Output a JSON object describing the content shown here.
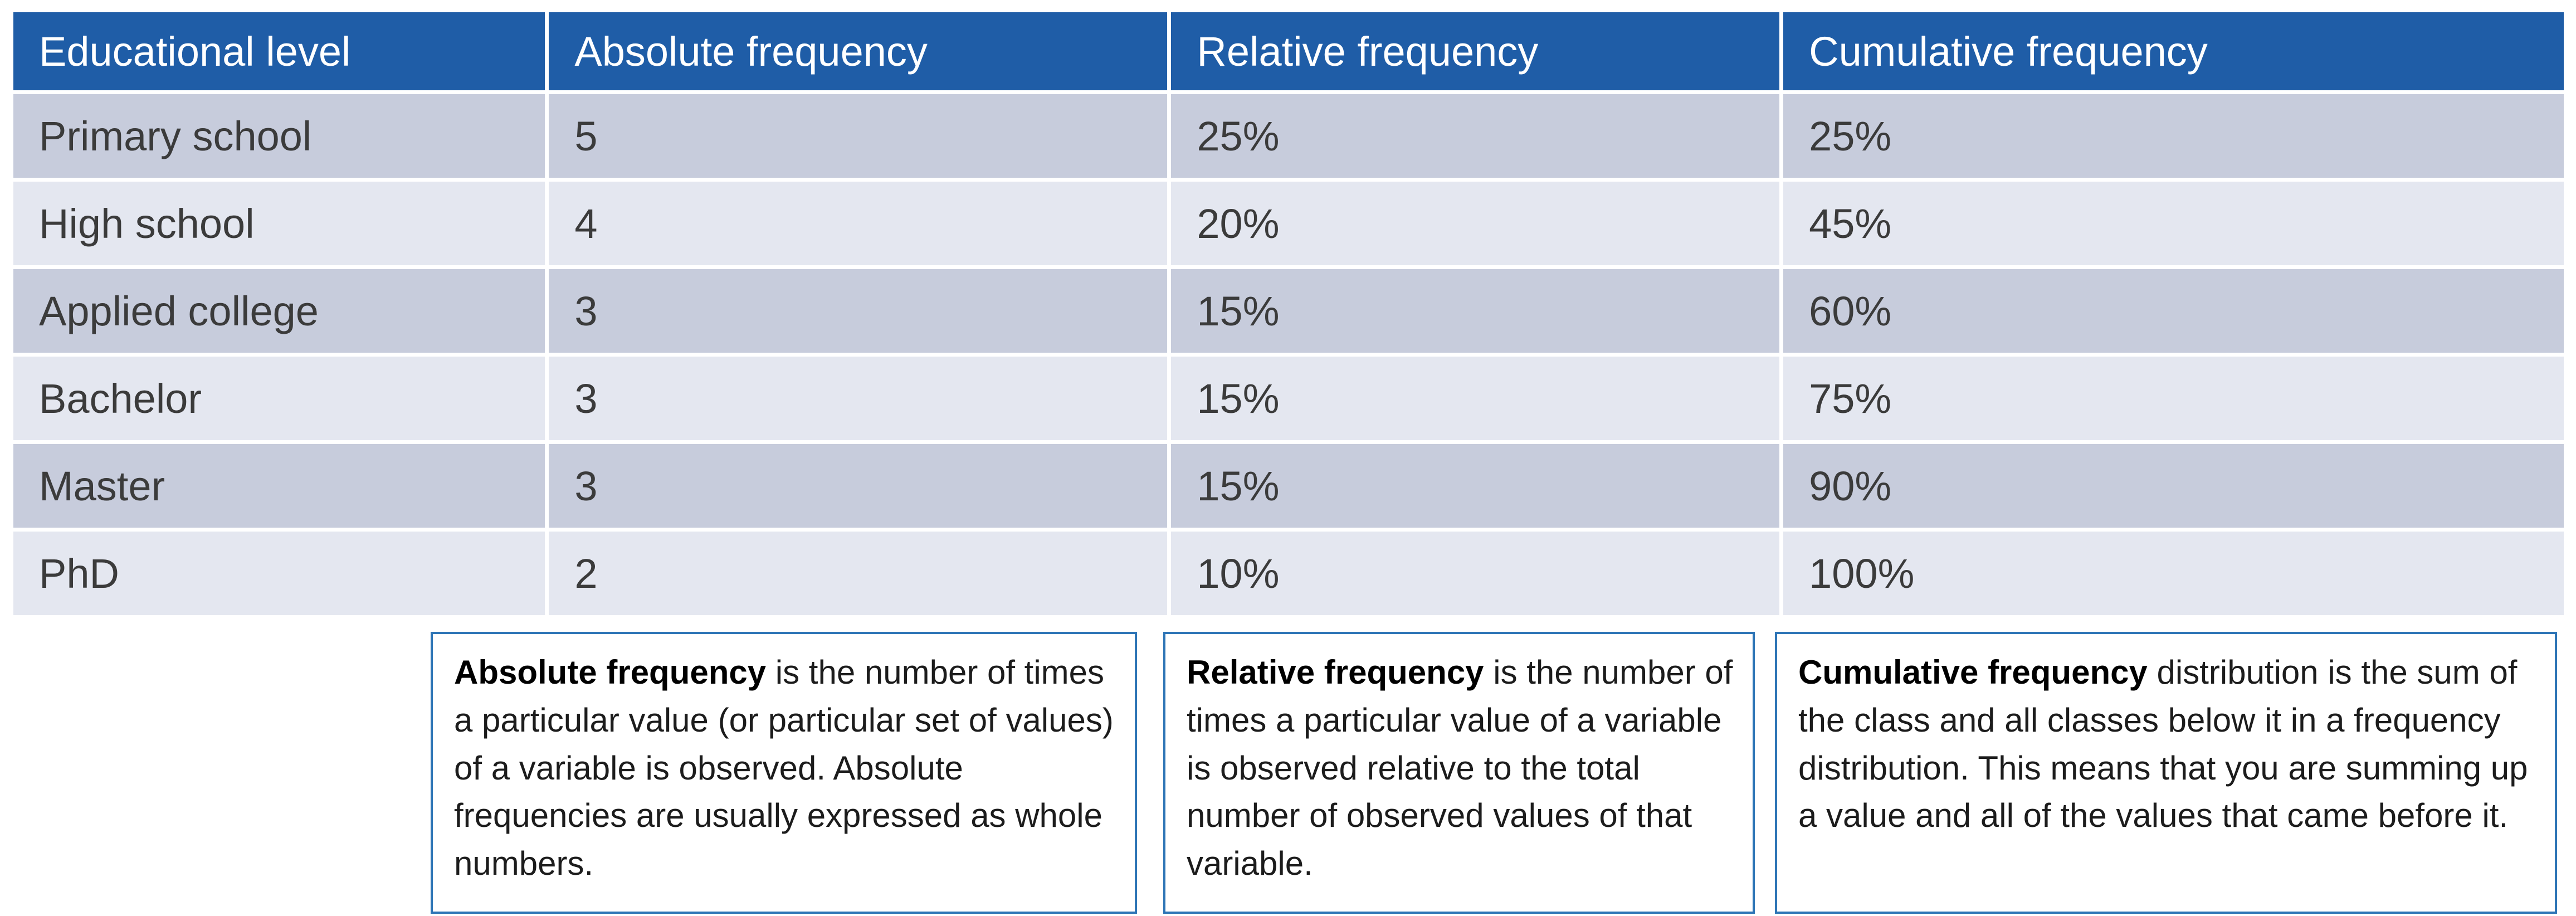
{
  "colors": {
    "header_bg": "#1f5da7",
    "row_dark": "#c7ccdc",
    "row_light": "#e4e7f0",
    "cell_divider": "#ffffff",
    "header_text": "#ffffff",
    "body_text": "#3b3b3b",
    "box_border": "#2e75b6",
    "page_bg": "#ffffff"
  },
  "table": {
    "headers": [
      "Educational level",
      "Absolute frequency",
      "Relative frequency",
      "Cumulative frequency"
    ],
    "rows": [
      {
        "cells": [
          "Primary school",
          "5",
          "25%",
          "25%"
        ]
      },
      {
        "cells": [
          "High school",
          "4",
          "20%",
          "45%"
        ]
      },
      {
        "cells": [
          "Applied college",
          "3",
          "15%",
          "60%"
        ]
      },
      {
        "cells": [
          "Bachelor",
          "3",
          "15%",
          "75%"
        ]
      },
      {
        "cells": [
          "Master",
          "3",
          "15%",
          "90%"
        ]
      },
      {
        "cells": [
          "PhD",
          "2",
          "10%",
          "100%"
        ]
      }
    ]
  },
  "definitions": [
    {
      "term": "Absolute frequency",
      "rest": " is the number of times a particular value (or particular set of values) of a variable is observed. Absolute frequencies are usually expressed as whole numbers."
    },
    {
      "term": "Relative frequency",
      "rest": " is the number of times a particular value of a variable is observed relative to the total number of observed values of that variable."
    },
    {
      "term": "Cumulative frequency",
      "rest": " distribution is the sum of the class and all classes below it in a frequency distribution. This means that you are summing up a value and all of the values that came before it."
    }
  ],
  "chart_data": {
    "type": "table",
    "title": "",
    "columns": [
      "Educational level",
      "Absolute frequency",
      "Relative frequency",
      "Cumulative frequency"
    ],
    "categories": [
      "Primary school",
      "High school",
      "Applied college",
      "Bachelor",
      "Master",
      "PhD"
    ],
    "series": [
      {
        "name": "Absolute frequency",
        "values": [
          5,
          4,
          3,
          3,
          3,
          2
        ]
      },
      {
        "name": "Relative frequency (%)",
        "values": [
          25,
          20,
          15,
          15,
          15,
          10
        ]
      },
      {
        "name": "Cumulative frequency (%)",
        "values": [
          25,
          45,
          60,
          75,
          90,
          100
        ]
      }
    ]
  }
}
